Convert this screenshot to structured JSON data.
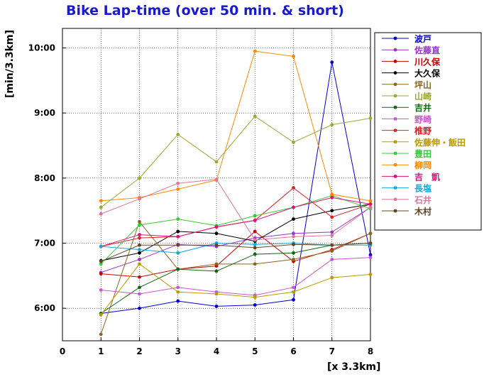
{
  "title": "Bike Lap-time (over 50 min. & short)",
  "title_color": "#1a1acc",
  "chart_data": {
    "type": "line",
    "title": "Bike Lap-time (over 50 min. & short)",
    "xlabel": "[x 3.3km]",
    "ylabel": "[min/3.3km]",
    "xlim": [
      0,
      8
    ],
    "ylim": [
      5.5,
      10.3
    ],
    "x_ticks": [
      "0",
      "1",
      "2",
      "3",
      "4",
      "5",
      "6",
      "7",
      "8"
    ],
    "y_ticks": [
      {
        "v": 6.0,
        "label": "6:00"
      },
      {
        "v": 7.0,
        "label": "7:00"
      },
      {
        "v": 8.0,
        "label": "8:00"
      },
      {
        "v": 9.0,
        "label": "9:00"
      },
      {
        "v": 10.0,
        "label": "10:00"
      }
    ],
    "grid": true,
    "legend_placement": "right",
    "x": [
      1,
      2,
      3,
      4,
      5,
      6,
      7,
      8
    ],
    "series": [
      {
        "name": "波戸",
        "color": "#0000cc",
        "values": [
          5.92,
          6.0,
          6.11,
          6.03,
          6.05,
          6.13,
          9.78,
          6.82
        ]
      },
      {
        "name": "佐藤直",
        "color": "#9933cc",
        "values": [
          6.55,
          6.75,
          6.98,
          6.95,
          7.08,
          7.15,
          7.17,
          7.55
        ]
      },
      {
        "name": "川久保",
        "color": "#cc0000",
        "values": [
          6.53,
          6.48,
          6.6,
          6.65,
          7.18,
          6.72,
          6.9,
          7.15
        ]
      },
      {
        "name": "大久保",
        "color": "#000000",
        "values": [
          6.73,
          6.85,
          7.18,
          7.15,
          7.03,
          7.37,
          7.5,
          7.6
        ]
      },
      {
        "name": "坪山",
        "color": "#886622",
        "values": [
          5.6,
          7.33,
          6.6,
          6.68,
          6.68,
          6.75,
          6.88,
          7.15
        ]
      },
      {
        "name": "山崎",
        "color": "#99aa33",
        "values": [
          7.55,
          8.0,
          8.67,
          8.25,
          8.95,
          8.55,
          8.82,
          8.92
        ]
      },
      {
        "name": "吉井",
        "color": "#116611",
        "values": [
          5.92,
          6.32,
          6.6,
          6.57,
          6.83,
          6.85,
          6.97,
          7.0
        ]
      },
      {
        "name": "野崎",
        "color": "#cc55cc",
        "values": [
          6.28,
          6.22,
          6.32,
          6.25,
          6.2,
          6.32,
          6.75,
          6.78
        ]
      },
      {
        "name": "椎野",
        "color": "#dd2222",
        "values": [
          6.95,
          7.08,
          7.1,
          7.25,
          7.35,
          7.85,
          7.4,
          7.6
        ]
      },
      {
        "name": "佐藤伸・飯田",
        "color": "#bb9900",
        "values": [
          5.9,
          6.68,
          6.25,
          6.22,
          6.17,
          6.25,
          6.47,
          6.52
        ]
      },
      {
        "name": "豊田",
        "color": "#33cc33",
        "values": [
          6.68,
          7.28,
          7.37,
          7.27,
          7.42,
          7.55,
          7.73,
          7.53
        ]
      },
      {
        "name": "柳岡",
        "color": "#ff8800",
        "values": [
          7.65,
          7.7,
          7.83,
          7.97,
          9.95,
          9.87,
          7.75,
          7.65
        ]
      },
      {
        "name": "吉　凱",
        "color": "#dd1177",
        "values": [
          6.95,
          7.13,
          7.1,
          7.25,
          7.35,
          7.55,
          7.7,
          7.6
        ]
      },
      {
        "name": "長塩",
        "color": "#11aadd",
        "values": [
          6.95,
          6.9,
          6.85,
          7.0,
          6.98,
          7.0,
          6.97,
          6.97
        ]
      },
      {
        "name": "石井",
        "color": "#dd7799",
        "values": [
          7.45,
          7.68,
          7.92,
          7.98,
          7.05,
          7.1,
          7.12,
          7.55
        ]
      },
      {
        "name": "木村",
        "color": "#664422",
        "values": [
          6.72,
          6.97,
          6.97,
          6.97,
          6.93,
          6.98,
          6.97,
          7.0
        ]
      }
    ]
  }
}
